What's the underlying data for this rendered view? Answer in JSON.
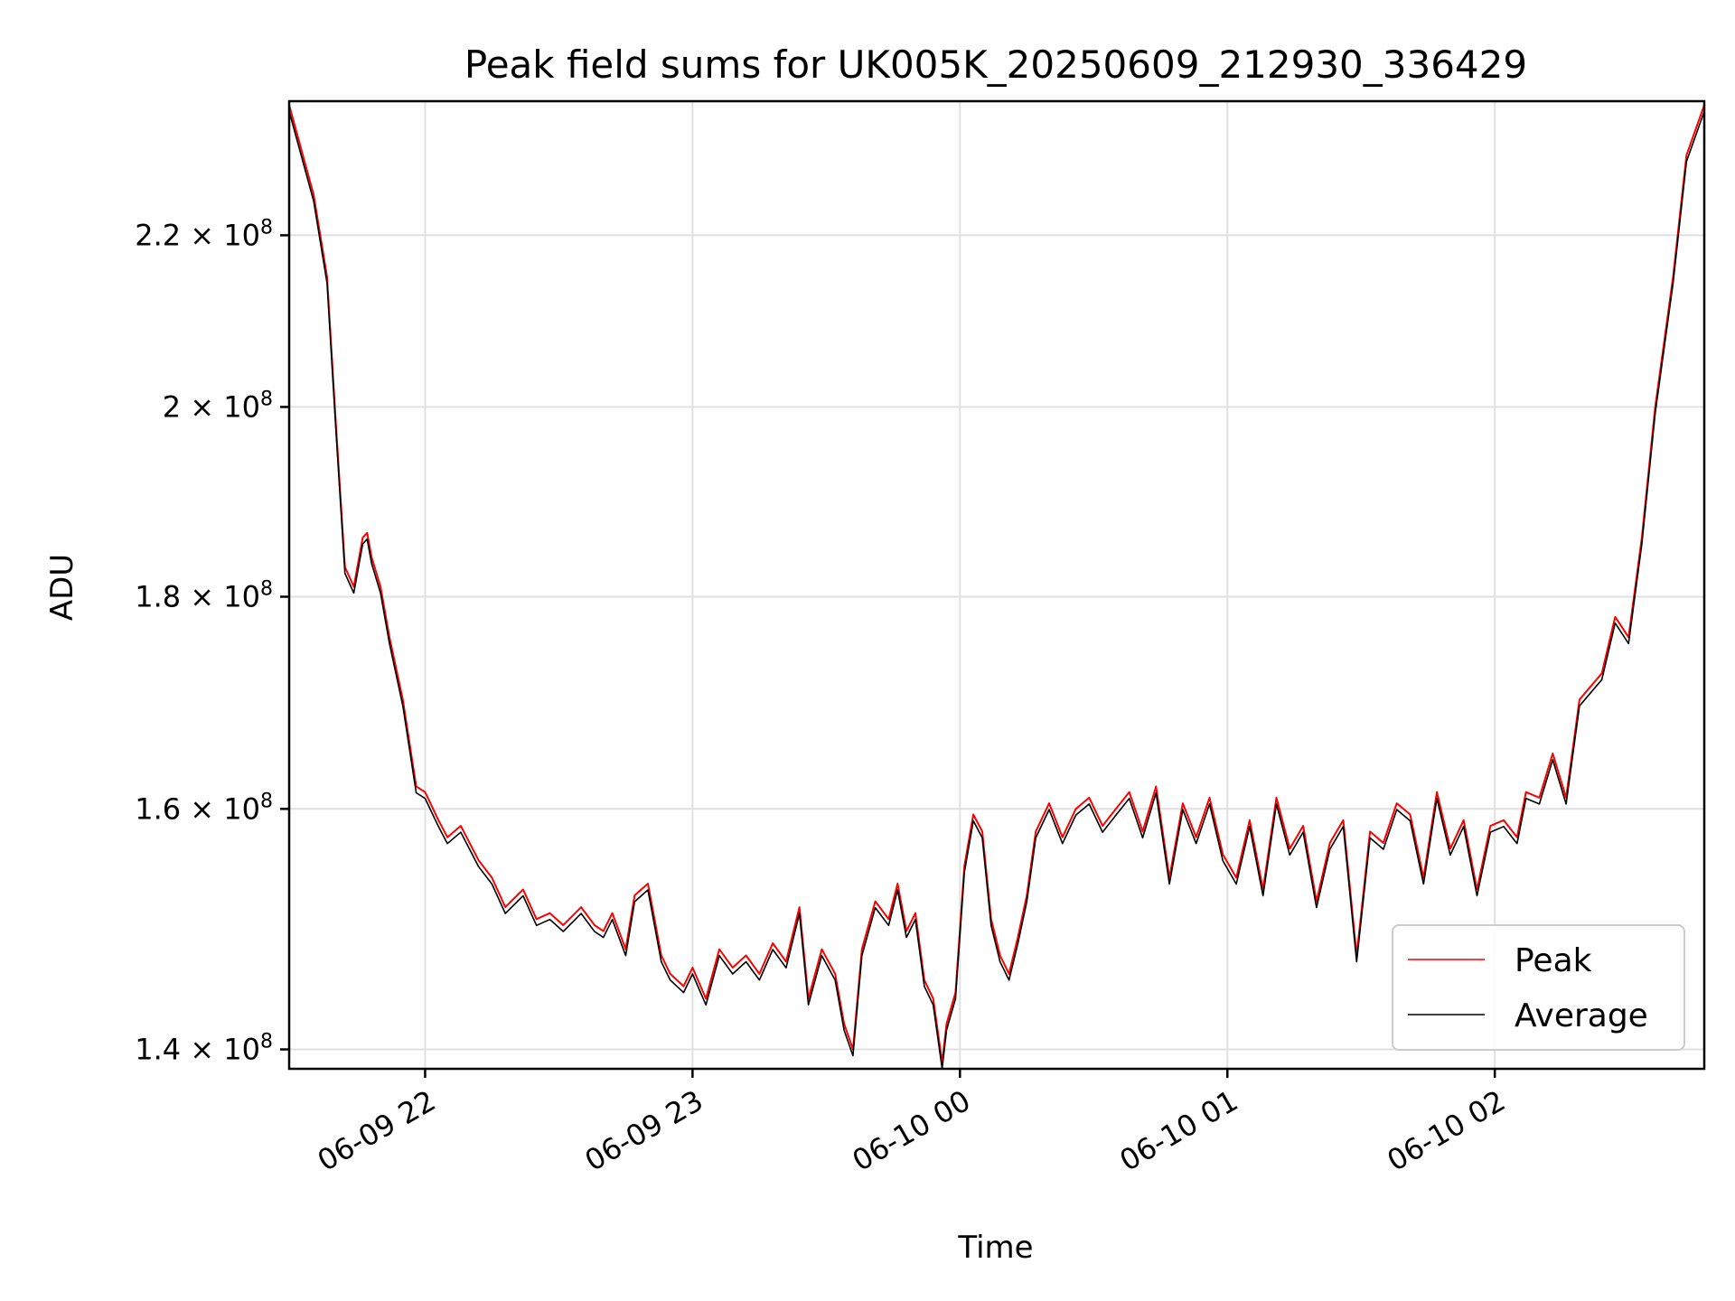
{
  "chart_data": {
    "type": "line",
    "title": "Peak field sums for UK005K_20250609_212930_336429",
    "xlabel": "Time",
    "ylabel": "ADU",
    "y_scale": "log",
    "xlim": [
      "2025-06-09 21:29:30",
      "2025-06-10 02:47:00"
    ],
    "ylim": [
      138500000,
      237000000
    ],
    "x_ticks": [
      "06-09 22",
      "06-09 23",
      "06-10 00",
      "06-10 01",
      "06-10 02"
    ],
    "y_ticks": [
      {
        "value": 140000000,
        "mantissa": "1.4",
        "exponent": "8"
      },
      {
        "value": 160000000,
        "mantissa": "1.6",
        "exponent": "8"
      },
      {
        "value": 180000000,
        "mantissa": "1.8",
        "exponent": "8"
      },
      {
        "value": 200000000,
        "mantissa": "2",
        "exponent": "8"
      },
      {
        "value": 220000000,
        "mantissa": "2.2",
        "exponent": "8"
      }
    ],
    "grid": true,
    "legend_position": "bottom-right",
    "series": [
      {
        "name": "Peak",
        "color": "#ff0000",
        "line_width": 1
      },
      {
        "name": "Average",
        "color": "#000000",
        "line_width": 1
      }
    ],
    "x": [
      "2025-06-09 21:29:30",
      "2025-06-09 21:35:00",
      "2025-06-09 21:38:00",
      "2025-06-09 21:40:00",
      "2025-06-09 21:42:00",
      "2025-06-09 21:44:00",
      "2025-06-09 21:46:00",
      "2025-06-09 21:47:00",
      "2025-06-09 21:48:00",
      "2025-06-09 21:50:00",
      "2025-06-09 21:52:00",
      "2025-06-09 21:55:00",
      "2025-06-09 21:58:00",
      "2025-06-09 22:00:00",
      "2025-06-09 22:03:00",
      "2025-06-09 22:05:00",
      "2025-06-09 22:08:00",
      "2025-06-09 22:12:00",
      "2025-06-09 22:15:00",
      "2025-06-09 22:18:00",
      "2025-06-09 22:22:00",
      "2025-06-09 22:25:00",
      "2025-06-09 22:28:00",
      "2025-06-09 22:31:00",
      "2025-06-09 22:35:00",
      "2025-06-09 22:38:00",
      "2025-06-09 22:40:00",
      "2025-06-09 22:42:00",
      "2025-06-09 22:45:00",
      "2025-06-09 22:47:00",
      "2025-06-09 22:50:00",
      "2025-06-09 22:53:00",
      "2025-06-09 22:55:00",
      "2025-06-09 22:58:00",
      "2025-06-09 23:00:00",
      "2025-06-09 23:03:00",
      "2025-06-09 23:06:00",
      "2025-06-09 23:09:00",
      "2025-06-09 23:12:00",
      "2025-06-09 23:15:00",
      "2025-06-09 23:18:00",
      "2025-06-09 23:21:00",
      "2025-06-09 23:24:00",
      "2025-06-09 23:26:00",
      "2025-06-09 23:29:00",
      "2025-06-09 23:32:00",
      "2025-06-09 23:34:00",
      "2025-06-09 23:36:00",
      "2025-06-09 23:38:00",
      "2025-06-09 23:41:00",
      "2025-06-09 23:44:00",
      "2025-06-09 23:46:00",
      "2025-06-09 23:48:00",
      "2025-06-09 23:50:00",
      "2025-06-09 23:52:00",
      "2025-06-09 23:54:00",
      "2025-06-09 23:56:00",
      "2025-06-09 23:57:00",
      "2025-06-09 23:59:00",
      "2025-06-10 00:01:00",
      "2025-06-10 00:03:00",
      "2025-06-10 00:05:00",
      "2025-06-10 00:07:00",
      "2025-06-10 00:09:00",
      "2025-06-10 00:11:00",
      "2025-06-10 00:13:00",
      "2025-06-10 00:15:00",
      "2025-06-10 00:17:00",
      "2025-06-10 00:20:00",
      "2025-06-10 00:23:00",
      "2025-06-10 00:26:00",
      "2025-06-10 00:29:00",
      "2025-06-10 00:32:00",
      "2025-06-10 00:35:00",
      "2025-06-10 00:38:00",
      "2025-06-10 00:41:00",
      "2025-06-10 00:44:00",
      "2025-06-10 00:47:00",
      "2025-06-10 00:50:00",
      "2025-06-10 00:53:00",
      "2025-06-10 00:56:00",
      "2025-06-10 00:59:00",
      "2025-06-10 01:02:00",
      "2025-06-10 01:05:00",
      "2025-06-10 01:08:00",
      "2025-06-10 01:11:00",
      "2025-06-10 01:14:00",
      "2025-06-10 01:17:00",
      "2025-06-10 01:20:00",
      "2025-06-10 01:23:00",
      "2025-06-10 01:26:00",
      "2025-06-10 01:29:00",
      "2025-06-10 01:32:00",
      "2025-06-10 01:35:00",
      "2025-06-10 01:38:00",
      "2025-06-10 01:41:00",
      "2025-06-10 01:44:00",
      "2025-06-10 01:47:00",
      "2025-06-10 01:50:00",
      "2025-06-10 01:53:00",
      "2025-06-10 01:56:00",
      "2025-06-10 01:59:00",
      "2025-06-10 02:02:00",
      "2025-06-10 02:05:00",
      "2025-06-10 02:07:00",
      "2025-06-10 02:10:00",
      "2025-06-10 02:13:00",
      "2025-06-10 02:16:00",
      "2025-06-10 02:19:00",
      "2025-06-10 02:21:00",
      "2025-06-10 02:24:00",
      "2025-06-10 02:27:00",
      "2025-06-10 02:30:00",
      "2025-06-10 02:33:00",
      "2025-06-10 02:36:00",
      "2025-06-10 02:40:00",
      "2025-06-10 02:43:00",
      "2025-06-10 02:47:00"
    ],
    "values": [
      236500000,
      225000000,
      215000000,
      198000000,
      183000000,
      181000000,
      186000000,
      186500000,
      184000000,
      181000000,
      176000000,
      170000000,
      162000000,
      161500000,
      159000000,
      157500000,
      158500000,
      155500000,
      154000000,
      151500000,
      153000000,
      150500000,
      151000000,
      150000000,
      151500000,
      150000000,
      149500000,
      151000000,
      148000000,
      152500000,
      153500000,
      147500000,
      146000000,
      145000000,
      146500000,
      144000000,
      148000000,
      146500000,
      147500000,
      146000000,
      148500000,
      147000000,
      151500000,
      144000000,
      148000000,
      146000000,
      142000000,
      140000000,
      148000000,
      152000000,
      150500000,
      153500000,
      149500000,
      151000000,
      145500000,
      144000000,
      139000000,
      142000000,
      144500000,
      155000000,
      159500000,
      158000000,
      150500000,
      147500000,
      146000000,
      149000000,
      152500000,
      158000000,
      160500000,
      157500000,
      160000000,
      161000000,
      158500000,
      160000000,
      161500000,
      158000000,
      162000000,
      154000000,
      160500000,
      157500000,
      161000000,
      156000000,
      154000000,
      159000000,
      153000000,
      161000000,
      156500000,
      158500000,
      152000000,
      157000000,
      159000000,
      147500000,
      158000000,
      157000000,
      160500000,
      159500000,
      154000000,
      161500000,
      156500000,
      159000000,
      153000000,
      158500000,
      159000000,
      157500000,
      161500000,
      161000000,
      165000000,
      161000000,
      170000000,
      171000000,
      172500000,
      178000000,
      176000000,
      186000000,
      200000000,
      215000000,
      230000000,
      236500000
    ]
  }
}
